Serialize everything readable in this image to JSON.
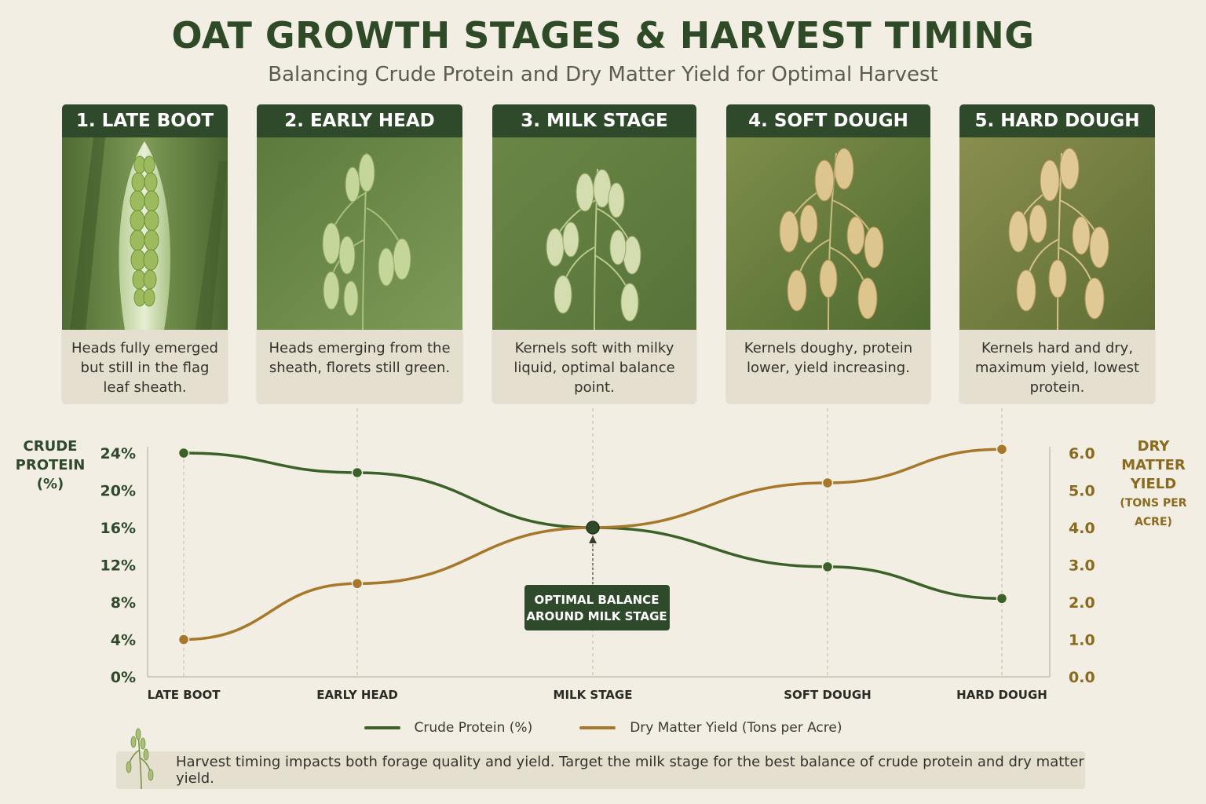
{
  "title": "OAT GROWTH STAGES & HARVEST TIMING",
  "subtitle": "Balancing Crude Protein and Dry Matter Yield for Optimal Harvest",
  "stages": [
    {
      "label": "1. LATE BOOT",
      "desc": "Heads fully emerged but still in the flag leaf sheath."
    },
    {
      "label": "2. EARLY HEAD",
      "desc": "Heads emerging from the sheath, florets still green."
    },
    {
      "label": "3. MILK STAGE",
      "desc": "Kernels soft with milky liquid, optimal balance point."
    },
    {
      "label": "4. SOFT DOUGH",
      "desc": "Kernels doughy, protein lower, yield increasing."
    },
    {
      "label": "5. HARD DOUGH",
      "desc": "Kernels hard and dry, maximum yield, lowest protein."
    }
  ],
  "colors": {
    "protein": "#3b6128",
    "yield": "#a7782a",
    "dark_green": "#2f4a2a",
    "background": "#f2eee3"
  },
  "chart_data": {
    "type": "line",
    "categories": [
      "LATE BOOT",
      "EARLY HEAD",
      "MILK STAGE",
      "SOFT DOUGH",
      "HARD DOUGH"
    ],
    "series": [
      {
        "name": "Crude Protein (%)",
        "axis": "left",
        "values": [
          24,
          21.9,
          16,
          11.8,
          8.4
        ]
      },
      {
        "name": "Dry Matter Yield (Tons per Acre)",
        "axis": "right",
        "values": [
          1.0,
          2.5,
          4.0,
          5.2,
          6.1
        ]
      }
    ],
    "ylabel_left_lines": [
      "CRUDE",
      "PROTEIN",
      "(%)"
    ],
    "ylabel_right_lines": [
      "DRY MATTER",
      "YIELD"
    ],
    "ylabel_right_sub": "(TONS PER ACRE)",
    "ylim_left": [
      0,
      24
    ],
    "yticks_left": [
      "0%",
      "4%",
      "8%",
      "12%",
      "16%",
      "20%",
      "24%"
    ],
    "ylim_right": [
      0,
      6
    ],
    "yticks_right": [
      "0.0",
      "1.0",
      "2.0",
      "3.0",
      "4.0",
      "5.0",
      "6.0"
    ],
    "annotation": {
      "category": "MILK STAGE",
      "lines": [
        "OPTIMAL BALANCE",
        "AROUND MILK STAGE"
      ]
    },
    "grid": false,
    "legend": "bottom"
  },
  "footer": "Harvest timing impacts both forage quality and yield.  Target the milk stage for the best balance of crude protein and dry matter yield."
}
